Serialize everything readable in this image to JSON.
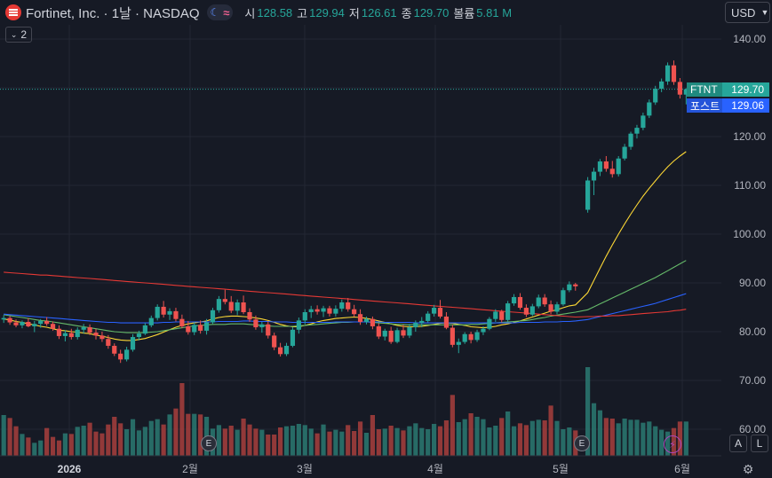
{
  "header": {
    "title": "Fortinet, Inc. · 1날 · NASDAQ",
    "ohlc": [
      {
        "label": "시",
        "value": "128.58"
      },
      {
        "label": "고",
        "value": "129.94"
      },
      {
        "label": "저",
        "value": "126.61"
      },
      {
        "label": "종",
        "value": "129.70"
      },
      {
        "label": "볼륨",
        "value": "5.81 M"
      }
    ]
  },
  "currency": "USD",
  "collapse_count": "2",
  "price_tags": {
    "symbol": "FTNT",
    "last": "129.70",
    "post_label": "포스트",
    "post": "129.06"
  },
  "scale_buttons": {
    "auto": "A",
    "log": "L"
  },
  "event_marks": {
    "earnings": "E"
  },
  "colors": {
    "up": "#26a69a",
    "down": "#ef5350",
    "ma_yellow": "#fdd835",
    "ma_green": "#66bb6a",
    "ma_blue": "#2962ff",
    "ma_red": "#e53935",
    "background": "#161a25"
  },
  "chart_data": {
    "type": "candlestick",
    "symbol": "FTNT",
    "interval": "1날",
    "y_ticks": [
      "140.00",
      "130.00",
      "120.00",
      "110.00",
      "100.00",
      "90.00",
      "80.00",
      "70.00",
      "60.00"
    ],
    "x_ticks": [
      "2026",
      "2월",
      "3월",
      "4월",
      "5월",
      "6월"
    ],
    "ylim": [
      57,
      145
    ],
    "last_price": 129.7,
    "post_market_price": 129.06,
    "grid": true,
    "candles": [
      [
        82.5,
        83.4,
        81.8,
        82.8
      ],
      [
        82.8,
        83.2,
        81.4,
        81.9
      ],
      [
        81.9,
        82.5,
        80.9,
        81.3
      ],
      [
        81.3,
        82.3,
        80.7,
        82.0
      ],
      [
        82.0,
        82.8,
        80.9,
        81.1
      ],
      [
        81.1,
        82.2,
        79.9,
        81.6
      ],
      [
        81.6,
        82.6,
        80.8,
        82.2
      ],
      [
        82.2,
        83.0,
        81.2,
        81.6
      ],
      [
        81.6,
        82.1,
        80.2,
        80.6
      ],
      [
        80.6,
        81.3,
        78.5,
        79.1
      ],
      [
        79.1,
        80.3,
        78.0,
        79.7
      ],
      [
        79.7,
        80.6,
        78.4,
        78.9
      ],
      [
        78.9,
        80.9,
        78.4,
        80.4
      ],
      [
        80.4,
        81.6,
        79.6,
        80.9
      ],
      [
        80.9,
        81.5,
        79.3,
        79.8
      ],
      [
        79.8,
        80.6,
        78.4,
        79.2
      ],
      [
        79.2,
        80.0,
        77.9,
        78.5
      ],
      [
        78.5,
        79.3,
        76.5,
        77.1
      ],
      [
        77.1,
        77.6,
        75.0,
        75.5
      ],
      [
        75.5,
        76.3,
        73.6,
        74.3
      ],
      [
        74.3,
        76.9,
        73.9,
        76.3
      ],
      [
        76.3,
        79.5,
        75.9,
        78.9
      ],
      [
        78.9,
        80.2,
        78.2,
        79.6
      ],
      [
        79.6,
        81.8,
        79.3,
        81.3
      ],
      [
        81.3,
        83.3,
        80.9,
        82.8
      ],
      [
        82.8,
        85.6,
        82.3,
        85.1
      ],
      [
        85.1,
        86.3,
        82.9,
        83.5
      ],
      [
        83.5,
        84.8,
        82.4,
        84.2
      ],
      [
        84.2,
        84.9,
        82.1,
        82.6
      ],
      [
        82.6,
        83.5,
        80.7,
        81.1
      ],
      [
        81.1,
        82.2,
        79.4,
        79.9
      ],
      [
        79.9,
        81.9,
        79.3,
        81.4
      ],
      [
        81.4,
        82.3,
        79.6,
        80.2
      ],
      [
        80.2,
        82.6,
        79.4,
        81.9
      ],
      [
        81.9,
        84.9,
        81.6,
        84.4
      ],
      [
        84.4,
        87.3,
        83.9,
        86.7
      ],
      [
        86.7,
        88.6,
        85.6,
        86.1
      ],
      [
        86.1,
        87.3,
        83.8,
        84.3
      ],
      [
        84.3,
        86.6,
        83.4,
        86.0
      ],
      [
        86.0,
        87.4,
        83.6,
        84.0
      ],
      [
        84.0,
        84.8,
        82.0,
        82.5
      ],
      [
        82.5,
        83.3,
        80.4,
        80.9
      ],
      [
        80.9,
        82.0,
        79.8,
        81.5
      ],
      [
        81.5,
        82.1,
        78.6,
        79.2
      ],
      [
        79.2,
        79.8,
        76.2,
        76.8
      ],
      [
        76.8,
        77.7,
        74.9,
        75.4
      ],
      [
        75.4,
        77.7,
        75.0,
        77.1
      ],
      [
        77.1,
        80.9,
        76.8,
        80.4
      ],
      [
        80.4,
        82.9,
        79.6,
        82.3
      ],
      [
        82.3,
        84.6,
        81.5,
        84.0
      ],
      [
        84.0,
        85.3,
        82.8,
        84.6
      ],
      [
        84.6,
        85.4,
        83.5,
        84.1
      ],
      [
        84.1,
        85.3,
        83.0,
        84.8
      ],
      [
        84.8,
        85.3,
        83.1,
        83.7
      ],
      [
        83.7,
        85.4,
        83.1,
        84.7
      ],
      [
        84.7,
        86.6,
        84.1,
        86.0
      ],
      [
        86.0,
        86.9,
        84.1,
        84.6
      ],
      [
        84.6,
        85.5,
        83.0,
        83.6
      ],
      [
        83.6,
        84.6,
        81.4,
        82.0
      ],
      [
        82.0,
        83.1,
        81.5,
        82.6
      ],
      [
        82.6,
        83.1,
        80.5,
        81.1
      ],
      [
        81.1,
        81.7,
        78.5,
        79.0
      ],
      [
        79.0,
        80.6,
        78.2,
        80.2
      ],
      [
        80.2,
        81.0,
        77.5,
        77.9
      ],
      [
        77.9,
        80.8,
        77.6,
        80.3
      ],
      [
        80.3,
        81.4,
        78.7,
        79.2
      ],
      [
        79.2,
        81.6,
        78.7,
        80.9
      ],
      [
        80.9,
        82.3,
        80.0,
        81.8
      ],
      [
        81.8,
        83.0,
        80.9,
        82.2
      ],
      [
        82.2,
        84.2,
        81.9,
        83.7
      ],
      [
        83.7,
        85.5,
        83.1,
        84.9
      ],
      [
        84.9,
        86.5,
        82.7,
        83.1
      ],
      [
        83.1,
        84.0,
        80.5,
        80.8
      ],
      [
        80.8,
        81.4,
        76.8,
        77.3
      ],
      [
        77.3,
        78.6,
        75.6,
        77.9
      ],
      [
        77.9,
        79.9,
        77.5,
        79.5
      ],
      [
        79.5,
        80.0,
        77.6,
        78.3
      ],
      [
        78.3,
        80.4,
        77.9,
        79.9
      ],
      [
        79.9,
        81.1,
        79.3,
        80.6
      ],
      [
        80.6,
        83.0,
        80.3,
        82.6
      ],
      [
        82.6,
        84.6,
        82.0,
        84.1
      ],
      [
        84.1,
        84.5,
        81.9,
        82.4
      ],
      [
        82.4,
        86.3,
        82.1,
        85.8
      ],
      [
        85.8,
        87.7,
        85.3,
        87.1
      ],
      [
        87.1,
        87.9,
        84.5,
        84.9
      ],
      [
        84.9,
        85.6,
        83.0,
        83.5
      ],
      [
        83.5,
        85.7,
        83.2,
        85.2
      ],
      [
        85.2,
        87.6,
        84.8,
        87.0
      ],
      [
        87.0,
        87.7,
        85.1,
        85.6
      ],
      [
        85.6,
        86.4,
        83.6,
        84.1
      ],
      [
        84.1,
        86.1,
        83.6,
        85.6
      ],
      [
        85.6,
        89.0,
        85.3,
        88.5
      ],
      [
        88.5,
        90.3,
        88.1,
        89.7
      ],
      [
        89.7,
        90.0,
        88.4,
        89.3
      ],
      [
        105.0,
        111.7,
        104.4,
        111.0
      ],
      [
        111.0,
        113.6,
        108.0,
        112.8
      ],
      [
        112.8,
        115.4,
        111.9,
        114.9
      ],
      [
        114.9,
        116.0,
        112.8,
        113.4
      ],
      [
        113.4,
        115.0,
        111.6,
        112.3
      ],
      [
        112.3,
        116.0,
        111.8,
        115.5
      ],
      [
        115.5,
        118.5,
        115.1,
        117.9
      ],
      [
        117.9,
        121.0,
        117.3,
        120.6
      ],
      [
        120.6,
        122.4,
        119.6,
        121.8
      ],
      [
        121.8,
        124.9,
        121.3,
        124.3
      ],
      [
        124.3,
        127.6,
        123.8,
        127.0
      ],
      [
        127.0,
        130.4,
        126.5,
        129.8
      ],
      [
        129.8,
        131.9,
        129.1,
        131.3
      ],
      [
        131.3,
        135.2,
        130.6,
        134.6
      ],
      [
        134.6,
        135.6,
        130.6,
        131.2
      ],
      [
        131.2,
        132.0,
        127.8,
        128.6
      ],
      [
        128.6,
        129.9,
        126.6,
        129.7
      ]
    ],
    "volume_millions": [
      6.9,
      6.4,
      5.0,
      3.7,
      3.1,
      2.2,
      2.6,
      4.7,
      3.2,
      2.6,
      3.8,
      3.7,
      4.9,
      5.1,
      5.6,
      4.1,
      3.8,
      5.3,
      6.6,
      5.5,
      4.5,
      6.2,
      4.3,
      4.9,
      5.9,
      6.2,
      5.3,
      7.0,
      8.0,
      12.3,
      7.1,
      7.1,
      7.0,
      6.6,
      4.6,
      5.2,
      4.6,
      5.1,
      4.4,
      6.3,
      5.3,
      4.6,
      4.4,
      3.6,
      3.6,
      4.8,
      5.0,
      5.1,
      5.4,
      5.2,
      4.6,
      3.8,
      5.3,
      4.1,
      4.4,
      4.1,
      5.2,
      4.2,
      5.8,
      3.9,
      6.9,
      4.5,
      4.6,
      5.1,
      4.7,
      4.3,
      5.0,
      5.5,
      4.7,
      4.5,
      5.4,
      5.0,
      6.0,
      10.3,
      5.7,
      6.2,
      7.2,
      6.6,
      6.2,
      4.8,
      5.1,
      6.4,
      7.5,
      5.0,
      5.5,
      5.2,
      5.9,
      6.1,
      6.0,
      8.5,
      5.9,
      4.5,
      4.8,
      4.3,
      15.0,
      8.9,
      7.7,
      6.4,
      6.3,
      5.5,
      6.3,
      6.1,
      6.1,
      5.6,
      5.8,
      5.0,
      4.4,
      4.1,
      4.7,
      5.8,
      5.8
    ],
    "moving_averages": [
      {
        "color": "#fdd835",
        "values": [
          82.6,
          82.4,
          82.1,
          81.9,
          81.6,
          81.4,
          81.1,
          80.9,
          80.6,
          80.3,
          80.2,
          80.0,
          79.9,
          79.7,
          79.6,
          79.3,
          79.1,
          78.8,
          78.5,
          78.3,
          78.2,
          78.2,
          78.4,
          78.6,
          79.0,
          79.4,
          79.9,
          80.4,
          80.9,
          81.3,
          81.6,
          81.8,
          82.0,
          82.2,
          82.6,
          82.9,
          83.1,
          83.2,
          83.2,
          83.1,
          83.0,
          82.8,
          82.6,
          82.3,
          81.9,
          81.5,
          81.2,
          81.0,
          81.0,
          81.3,
          81.6,
          82.0,
          82.3,
          82.5,
          82.7,
          82.8,
          82.9,
          83.0,
          82.9,
          82.7,
          82.5,
          82.2,
          81.9,
          81.6,
          81.3,
          81.1,
          81.0,
          81.0,
          81.1,
          81.3,
          81.5,
          81.7,
          81.8,
          81.7,
          81.5,
          81.3,
          81.0,
          80.9,
          80.8,
          80.9,
          81.1,
          81.4,
          81.6,
          81.9,
          82.2,
          82.6,
          83.0,
          83.4,
          83.8,
          84.2,
          84.5,
          84.9,
          85.3,
          85.5,
          88.0,
          90.5,
          93.0,
          95.5,
          97.8,
          100.0,
          102.1,
          104.1,
          106.0,
          107.8,
          109.4,
          110.9,
          112.4,
          113.8,
          115.0,
          116.0,
          116.9
        ]
      },
      {
        "color": "#66bb6a",
        "values": [
          83.5,
          83.3,
          83.1,
          82.9,
          82.7,
          82.5,
          82.3,
          82.2,
          82.0,
          81.8,
          81.6,
          81.4,
          81.2,
          81.0,
          80.8,
          80.6,
          80.4,
          80.2,
          80.0,
          79.9,
          79.8,
          79.8,
          79.8,
          79.8,
          79.9,
          80.0,
          80.2,
          80.4,
          80.6,
          80.8,
          81.0,
          81.2,
          81.3,
          81.4,
          81.5,
          81.5,
          81.5,
          81.6,
          81.6,
          81.6,
          81.5,
          81.4,
          81.3,
          81.2,
          81.1,
          81.1,
          81.1,
          81.1,
          81.2,
          81.3,
          81.4,
          81.5,
          81.6,
          81.7,
          81.8,
          81.9,
          81.9,
          82.0,
          82.0,
          82.0,
          81.9,
          81.8,
          81.7,
          81.6,
          81.5,
          81.5,
          81.4,
          81.4,
          81.4,
          81.4,
          81.4,
          81.4,
          81.4,
          81.4,
          81.4,
          81.4,
          81.5,
          81.5,
          81.6,
          81.7,
          81.8,
          81.9,
          82.0,
          82.1,
          82.2,
          82.3,
          82.5,
          82.7,
          82.9,
          83.2,
          83.4,
          83.6,
          83.8,
          84.0,
          84.5,
          85.1,
          85.7,
          86.3,
          86.9,
          87.5,
          88.1,
          88.7,
          89.3,
          89.9,
          90.5,
          91.1,
          91.8,
          92.5,
          93.2,
          93.9,
          94.6
        ]
      },
      {
        "color": "#2962ff",
        "values": [
          83.6,
          83.5,
          83.4,
          83.3,
          83.2,
          83.1,
          83.0,
          82.9,
          82.8,
          82.7,
          82.6,
          82.5,
          82.4,
          82.3,
          82.2,
          82.1,
          82.0,
          81.9,
          81.9,
          81.8,
          81.8,
          81.8,
          81.8,
          81.8,
          81.8,
          81.8,
          81.9,
          81.9,
          82.0,
          82.0,
          82.0,
          82.0,
          82.0,
          82.0,
          82.0,
          82.1,
          82.1,
          82.1,
          82.1,
          82.2,
          82.2,
          82.1,
          82.1,
          82.1,
          82.0,
          82.0,
          82.0,
          81.9,
          81.9,
          81.9,
          81.9,
          81.9,
          81.9,
          81.9,
          82.0,
          82.0,
          82.0,
          82.0,
          82.0,
          82.0,
          82.0,
          82.0,
          81.9,
          81.9,
          81.9,
          81.9,
          81.9,
          81.8,
          81.8,
          81.8,
          81.8,
          81.8,
          81.8,
          81.8,
          81.8,
          81.8,
          81.8,
          81.8,
          81.8,
          81.8,
          81.8,
          81.8,
          81.8,
          81.8,
          81.9,
          81.9,
          81.9,
          81.9,
          82.0,
          82.0,
          82.0,
          82.1,
          82.1,
          82.2,
          82.5,
          82.8,
          83.1,
          83.4,
          83.7,
          84.0,
          84.3,
          84.6,
          84.9,
          85.2,
          85.5,
          85.8,
          86.2,
          86.6,
          87.0,
          87.4,
          87.8
        ]
      },
      {
        "color": "#e53935",
        "values": [
          92.2,
          92.1,
          92.0,
          91.9,
          91.8,
          91.7,
          91.6,
          91.6,
          91.5,
          91.4,
          91.3,
          91.2,
          91.1,
          91.0,
          90.9,
          90.8,
          90.7,
          90.6,
          90.5,
          90.4,
          90.3,
          90.2,
          90.1,
          90.0,
          89.9,
          89.8,
          89.7,
          89.6,
          89.5,
          89.4,
          89.3,
          89.2,
          89.1,
          89.0,
          88.9,
          88.8,
          88.7,
          88.6,
          88.5,
          88.4,
          88.3,
          88.2,
          88.1,
          88.0,
          87.9,
          87.8,
          87.7,
          87.6,
          87.5,
          87.4,
          87.3,
          87.2,
          87.1,
          87.0,
          86.9,
          86.8,
          86.7,
          86.6,
          86.5,
          86.4,
          86.3,
          86.2,
          86.1,
          86.0,
          85.9,
          85.8,
          85.7,
          85.6,
          85.5,
          85.4,
          85.3,
          85.2,
          85.1,
          85.0,
          84.9,
          84.8,
          84.7,
          84.6,
          84.5,
          84.4,
          84.3,
          84.2,
          84.1,
          84.0,
          83.9,
          83.8,
          83.7,
          83.6,
          83.5,
          83.4,
          83.3,
          83.2,
          83.1,
          83.0,
          83.1,
          83.1,
          83.2,
          83.2,
          83.3,
          83.3,
          83.4,
          83.5,
          83.6,
          83.7,
          83.8,
          83.9,
          84.0,
          84.1,
          84.3,
          84.4,
          84.6
        ]
      }
    ]
  }
}
